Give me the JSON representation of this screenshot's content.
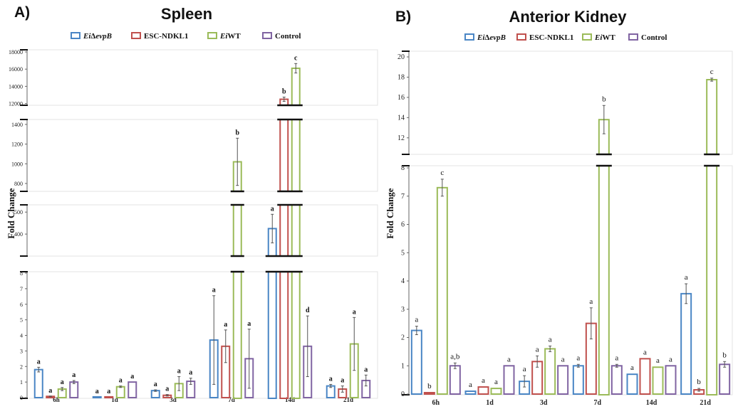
{
  "panels": {
    "a": {
      "letter": "A)",
      "title": "Spleen"
    },
    "b": {
      "letter": "B)",
      "title": "Anterior Kidney"
    }
  },
  "legend": {
    "items": [
      {
        "prefix": "Ei",
        "suffix": "Δ",
        "italic_tail": "evpB",
        "color": "#4a86c5"
      },
      {
        "label": "ESC-NDKL1",
        "color": "#c0504d"
      },
      {
        "prefix": "Ei",
        "label": "WT",
        "color": "#9bbb59"
      },
      {
        "label": "Control",
        "color": "#8064a2"
      }
    ]
  },
  "colors": {
    "EiΔevpB": "#4a86c5",
    "ESC-NDKL1": "#c0504d",
    "EiWT": "#9bbb59",
    "Control": "#8064a2"
  },
  "chart_data": [
    {
      "type": "bar",
      "panel": "A)",
      "title": "Spleen",
      "ylabel": "Fold Change",
      "categories": [
        "6h",
        "1d",
        "3d",
        "7d",
        "14d",
        "21d"
      ],
      "broken_axis": true,
      "axis_segments": [
        {
          "range": [
            0,
            8
          ],
          "ticks": [
            0,
            1,
            2,
            3,
            4,
            5,
            6,
            7,
            8
          ]
        },
        {
          "range": [
            300,
            520
          ],
          "ticks": [
            400,
            500
          ]
        },
        {
          "range": [
            720,
            1450
          ],
          "ticks": [
            800,
            1000,
            1200,
            1400
          ]
        },
        {
          "range": [
            11800,
            18000
          ],
          "ticks": [
            12000,
            14000,
            16000,
            18000
          ]
        }
      ],
      "series": [
        {
          "name": "EiΔevpB",
          "values": [
            1.8,
            0.05,
            0.45,
            3.7,
            425,
            0.75
          ],
          "errors": [
            0.15,
            0.0,
            0.05,
            2.85,
            65,
            0.1
          ],
          "labels": [
            "a",
            "a",
            "a",
            "a",
            "a",
            "a"
          ]
        },
        {
          "name": "ESC-NDKL1",
          "values": [
            0.08,
            0.05,
            0.15,
            3.3,
            12500,
            0.55
          ],
          "errors": [
            0.02,
            0.0,
            0.05,
            1.05,
            250,
            0.2
          ],
          "labels": [
            "a",
            "a",
            "a",
            "a",
            "b",
            "a"
          ]
        },
        {
          "name": "EiWT",
          "values": [
            0.55,
            0.7,
            0.9,
            1020,
            16100,
            3.45
          ],
          "errors": [
            0.1,
            0.05,
            0.45,
            240,
            550,
            1.7
          ],
          "labels": [
            "a",
            "a",
            "a",
            "b",
            "c",
            "a"
          ]
        },
        {
          "name": "Control",
          "values": [
            1.0,
            1.0,
            1.05,
            2.5,
            3.3,
            1.1
          ],
          "errors": [
            0.1,
            0.0,
            0.2,
            1.9,
            1.95,
            0.35
          ],
          "labels": [
            "a",
            "a",
            "a",
            "a",
            "d",
            "a"
          ]
        }
      ]
    },
    {
      "type": "bar",
      "panel": "B)",
      "title": "Anterior Kidney",
      "ylabel": "Fold Change",
      "categories": [
        "6h",
        "1d",
        "3d",
        "7d",
        "14d",
        "21d"
      ],
      "broken_axis": true,
      "axis_segments": [
        {
          "range": [
            0,
            8
          ],
          "ticks": [
            0,
            1,
            2,
            3,
            4,
            5,
            6,
            7,
            8
          ]
        },
        {
          "range": [
            11,
            20
          ],
          "ticks": [
            12,
            14,
            16,
            18,
            20
          ]
        }
      ],
      "series": [
        {
          "name": "EiΔevpB",
          "values": [
            2.25,
            0.1,
            0.45,
            1.0,
            0.7,
            3.55
          ],
          "errors": [
            0.15,
            0.0,
            0.2,
            0.05,
            0.0,
            0.35
          ],
          "labels": [
            "a",
            "a",
            "a",
            "a",
            "a",
            "a"
          ]
        },
        {
          "name": "ESC-NDKL1",
          "values": [
            0.05,
            0.25,
            1.15,
            2.5,
            1.25,
            0.15
          ],
          "errors": [
            0.0,
            0.0,
            0.2,
            0.55,
            0.0,
            0.05
          ],
          "labels": [
            "b",
            "a",
            "a",
            "a",
            "a",
            "b"
          ]
        },
        {
          "name": "EiWT",
          "values": [
            7.3,
            0.2,
            1.6,
            13.8,
            0.95,
            17.75
          ],
          "errors": [
            0.3,
            0.0,
            0.1,
            1.4,
            0.0,
            0.15
          ],
          "labels": [
            "c",
            "a",
            "a",
            "b",
            "a",
            "c"
          ]
        },
        {
          "name": "Control",
          "values": [
            1.0,
            1.0,
            1.0,
            1.0,
            1.0,
            1.05
          ],
          "errors": [
            0.1,
            0.0,
            0.0,
            0.05,
            0.0,
            0.1
          ],
          "labels": [
            "a,b",
            "a",
            "a",
            "a",
            "a",
            "b"
          ]
        }
      ]
    }
  ]
}
